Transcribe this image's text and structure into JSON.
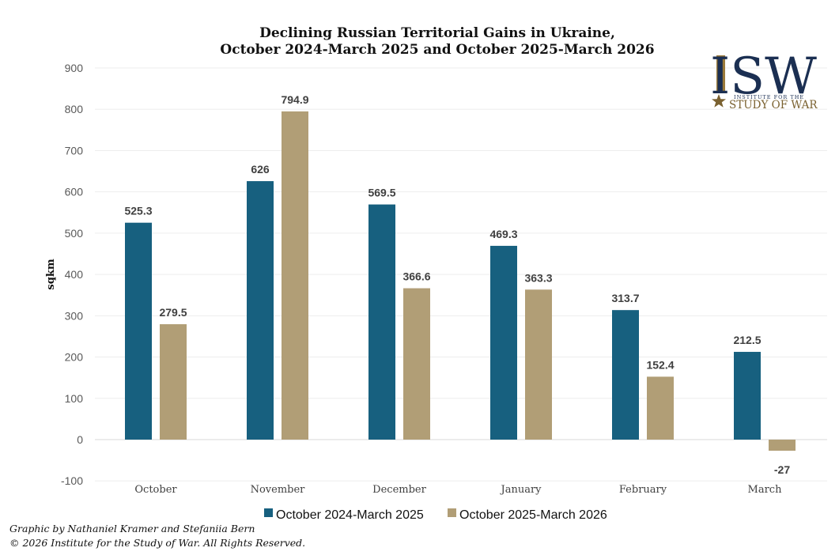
{
  "chart_data": {
    "type": "bar",
    "title_lines": [
      "Declining Russian Territorial Gains in Ukraine,",
      "October 2024-March 2025 and October 2025-March 2026"
    ],
    "ylabel": "sqkm",
    "ylim": [
      -100,
      900
    ],
    "yticks": [
      -100,
      0,
      100,
      200,
      300,
      400,
      500,
      600,
      700,
      800,
      900
    ],
    "grid": true,
    "legend_position": "bottom",
    "categories": [
      "October",
      "November",
      "December",
      "January",
      "February",
      "March"
    ],
    "series": [
      {
        "name": "October 2024-March 2025",
        "color": "#17607f",
        "values": [
          525.3,
          626,
          569.5,
          469.3,
          313.7,
          212.5
        ],
        "labels": [
          "525.3",
          "626",
          "569.5",
          "469.3",
          "313.7",
          "212.5"
        ]
      },
      {
        "name": "October 2025-March 2026",
        "color": "#b19e76",
        "values": [
          279.5,
          794.9,
          366.6,
          363.3,
          152.4,
          -27
        ],
        "labels": [
          "279.5",
          "794.9",
          "366.6",
          "363.3",
          "152.4",
          "-27"
        ]
      }
    ]
  },
  "credits": [
    "Graphic by Nathaniel Kramer and Stefaniia Bern",
    "© 2026 Institute for the Study of War. All Rights Reserved."
  ],
  "logo": {
    "mark": "ISW",
    "line1": "INSTITUTE FOR THE",
    "line2": "STUDY OF WAR",
    "star_icon": "star-icon",
    "navy": "#1b2f52",
    "gold": "#7a6130"
  }
}
